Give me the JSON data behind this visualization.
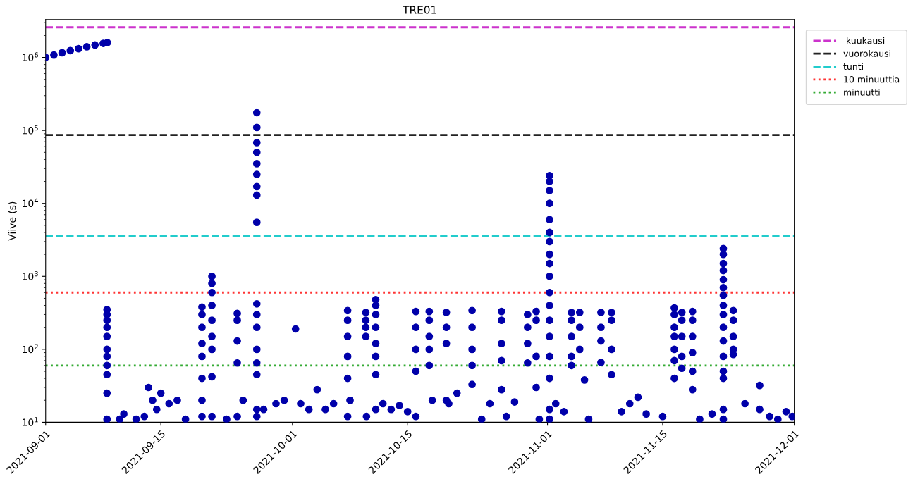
{
  "chart_data": {
    "type": "scatter",
    "title": "TRE01",
    "ylabel": "Viive (s)",
    "log": "y",
    "grid": false,
    "legend": "top right",
    "marker": "circle",
    "xlim": [
      "2021-09-01",
      "2021-12-01"
    ],
    "xticks": [
      {
        "value": "2021-09-01",
        "label": "2021-09-01"
      },
      {
        "value": "2021-09-15",
        "label": "2021-09-15"
      },
      {
        "value": "2021-10-01",
        "label": "2021-10-01"
      },
      {
        "value": "2021-10-15",
        "label": "2021-10-15"
      },
      {
        "value": "2021-11-01",
        "label": "2021-11-01"
      },
      {
        "value": "2021-11-15",
        "label": "2021-11-15"
      },
      {
        "value": "2021-12-01",
        "label": "2021-12-01"
      }
    ],
    "ylim": [
      10,
      3300000
    ],
    "yticks": [
      {
        "value": 10,
        "label": "10$^{1}$"
      },
      {
        "value": 100,
        "label": "10$^{2}$"
      },
      {
        "value": 1000,
        "label": "10$^{3}$"
      },
      {
        "value": 10000,
        "label": "10$^{4}$"
      },
      {
        "value": 100000,
        "label": "10$^{5}$"
      },
      {
        "value": 1000000,
        "label": "10$^{6}$"
      }
    ],
    "ref_lines": [
      {
        "axis": "y",
        "value": 2592000,
        "label": " kuukausi",
        "color": "#cc33cc",
        "line_style": "dashed"
      },
      {
        "axis": "y",
        "value": 86400,
        "label": "vuorokausi",
        "color": "#222222",
        "line_style": "dashed"
      },
      {
        "axis": "y",
        "value": 3600,
        "label": "tunti",
        "color": "#22cccc",
        "line_style": "dashed"
      },
      {
        "axis": "y",
        "value": 600,
        "label": "10 minuuttia",
        "color": "#ff3333",
        "line_style": "dotted"
      },
      {
        "axis": "y",
        "value": 60,
        "label": "minuutti",
        "color": "#33aa33",
        "line_style": "dotted"
      }
    ],
    "series": [
      {
        "color": "#0000aa",
        "x": [
          "2021-09-01T00:00",
          "2021-09-02T00:00",
          "2021-09-03T00:00",
          "2021-09-04T00:00",
          "2021-09-05T00:00",
          "2021-09-06T00:00",
          "2021-09-07T00:00",
          "2021-09-08T00:00",
          "2021-09-08T12:00",
          "2021-09-08T11:00",
          "2021-09-08T11:00",
          "2021-09-08T11:00",
          "2021-09-08T11:00",
          "2021-09-08T11:00",
          "2021-09-08T11:00",
          "2021-09-08T11:00",
          "2021-09-08T11:00",
          "2021-09-08T11:00",
          "2021-09-08T11:00",
          "2021-09-08T11:00",
          "2021-09-10T00:00",
          "2021-09-10T12:00",
          "2021-09-12T00:00",
          "2021-09-13T00:00",
          "2021-09-13T12:00",
          "2021-09-14T00:00",
          "2021-09-14T12:00",
          "2021-09-15T00:00",
          "2021-09-16T00:00",
          "2021-09-17T00:00",
          "2021-09-18T00:00",
          "2021-09-20T00:00",
          "2021-09-20T00:00",
          "2021-09-20T00:00",
          "2021-09-20T00:00",
          "2021-09-20T00:00",
          "2021-09-20T00:00",
          "2021-09-20T00:00",
          "2021-09-20T00:00",
          "2021-09-21T05:00",
          "2021-09-21T05:00",
          "2021-09-21T05:00",
          "2021-09-21T05:00",
          "2021-09-21T05:00",
          "2021-09-21T05:00",
          "2021-09-21T05:00",
          "2021-09-21T05:00",
          "2021-09-21T05:00",
          "2021-09-23T00:00",
          "2021-09-24T07:00",
          "2021-09-24T07:00",
          "2021-09-24T07:00",
          "2021-09-24T07:00",
          "2021-09-24T07:00",
          "2021-09-25T00:00",
          "2021-09-26T16:00",
          "2021-09-26T16:00",
          "2021-09-26T16:00",
          "2021-09-26T16:00",
          "2021-09-26T16:00",
          "2021-09-26T16:00",
          "2021-09-26T16:00",
          "2021-09-26T16:00",
          "2021-09-26T16:00",
          "2021-09-26T16:00",
          "2021-09-26T16:00",
          "2021-09-26T16:00",
          "2021-09-26T16:00",
          "2021-09-26T16:00",
          "2021-09-26T16:00",
          "2021-09-26T16:00",
          "2021-09-26T16:00",
          "2021-09-27T12:00",
          "2021-09-29T00:00",
          "2021-09-30T00:00",
          "2021-10-01T09:00",
          "2021-10-02T00:00",
          "2021-10-03T00:00",
          "2021-10-04T00:00",
          "2021-10-05T00:00",
          "2021-10-06T00:00",
          "2021-10-07T17:00",
          "2021-10-07T17:00",
          "2021-10-07T17:00",
          "2021-10-07T17:00",
          "2021-10-07T17:00",
          "2021-10-07T17:00",
          "2021-10-08T00:00",
          "2021-10-09T22:00",
          "2021-10-09T22:00",
          "2021-10-09T22:00",
          "2021-10-09T22:00",
          "2021-10-10T00:00",
          "2021-10-11T03:00",
          "2021-10-11T03:00",
          "2021-10-11T03:00",
          "2021-10-11T03:00",
          "2021-10-11T03:00",
          "2021-10-11T03:00",
          "2021-10-11T03:00",
          "2021-10-11T03:00",
          "2021-10-12T00:00",
          "2021-10-13T00:00",
          "2021-10-14T00:00",
          "2021-10-15T00:00",
          "2021-10-16T00:00",
          "2021-10-16T00:00",
          "2021-10-16T00:00",
          "2021-10-16T00:00",
          "2021-10-16T00:00",
          "2021-10-17T15:00",
          "2021-10-17T15:00",
          "2021-10-17T15:00",
          "2021-10-17T15:00",
          "2021-10-17T15:00",
          "2021-10-18T00:00",
          "2021-10-19T17:00",
          "2021-10-19T17:00",
          "2021-10-19T17:00",
          "2021-10-19T17:00",
          "2021-10-20T00:00",
          "2021-10-21T00:00",
          "2021-10-22T20:00",
          "2021-10-22T20:00",
          "2021-10-22T20:00",
          "2021-10-22T20:00",
          "2021-10-22T20:00",
          "2021-10-24T00:00",
          "2021-10-25T00:00",
          "2021-10-26T10:00",
          "2021-10-26T10:00",
          "2021-10-26T10:00",
          "2021-10-26T10:00",
          "2021-10-26T10:00",
          "2021-10-27T00:00",
          "2021-10-28T00:00",
          "2021-10-29T14:00",
          "2021-10-29T14:00",
          "2021-10-29T14:00",
          "2021-10-29T14:00",
          "2021-10-30T15:00",
          "2021-10-30T15:00",
          "2021-10-30T15:00",
          "2021-10-30T15:00",
          "2021-10-31T00:00",
          "2021-11-01T06:00",
          "2021-11-01T06:00",
          "2021-11-01T06:00",
          "2021-11-01T06:00",
          "2021-11-01T06:00",
          "2021-11-01T06:00",
          "2021-11-01T06:00",
          "2021-11-01T06:00",
          "2021-11-01T06:00",
          "2021-11-01T06:00",
          "2021-11-01T06:00",
          "2021-11-01T06:00",
          "2021-11-01T06:00",
          "2021-11-01T06:00",
          "2021-11-01T06:00",
          "2021-11-01T06:00",
          "2021-11-01T06:00",
          "2021-11-01T06:00",
          "2021-11-02T00:00",
          "2021-11-03T00:00",
          "2021-11-03T22:00",
          "2021-11-03T22:00",
          "2021-11-03T22:00",
          "2021-11-03T22:00",
          "2021-11-03T22:00",
          "2021-11-04T22:00",
          "2021-11-04T22:00",
          "2021-11-04T22:00",
          "2021-11-05T12:00",
          "2021-11-06T00:00",
          "2021-11-07T12:00",
          "2021-11-07T12:00",
          "2021-11-07T12:00",
          "2021-11-07T12:00",
          "2021-11-08T19:00",
          "2021-11-08T19:00",
          "2021-11-08T19:00",
          "2021-11-08T19:00",
          "2021-11-10T00:00",
          "2021-11-11T00:00",
          "2021-11-12T00:00",
          "2021-11-13T00:00",
          "2021-11-15T00:00",
          "2021-11-16T10:00",
          "2021-11-16T10:00",
          "2021-11-16T10:00",
          "2021-11-16T10:00",
          "2021-11-16T10:00",
          "2021-11-16T10:00",
          "2021-11-16T10:00",
          "2021-11-17T08:00",
          "2021-11-17T08:00",
          "2021-11-17T08:00",
          "2021-11-17T08:00",
          "2021-11-17T08:00",
          "2021-11-18T15:00",
          "2021-11-18T15:00",
          "2021-11-18T15:00",
          "2021-11-18T15:00",
          "2021-11-18T15:00",
          "2021-11-18T15:00",
          "2021-11-19T12:00",
          "2021-11-21T00:00",
          "2021-11-22T09:00",
          "2021-11-22T09:00",
          "2021-11-22T09:00",
          "2021-11-22T09:00",
          "2021-11-22T09:00",
          "2021-11-22T09:00",
          "2021-11-22T09:00",
          "2021-11-22T09:00",
          "2021-11-22T09:00",
          "2021-11-22T09:00",
          "2021-11-22T09:00",
          "2021-11-22T09:00",
          "2021-11-22T09:00",
          "2021-11-22T09:00",
          "2021-11-22T09:00",
          "2021-11-22T09:00",
          "2021-11-23T14:00",
          "2021-11-23T14:00",
          "2021-11-23T14:00",
          "2021-11-23T14:00",
          "2021-11-23T14:00",
          "2021-11-25T00:00",
          "2021-11-26T19:00",
          "2021-11-26T19:00",
          "2021-11-28T00:00",
          "2021-11-29T00:00",
          "2021-11-30T00:00",
          "2021-11-30T18:00"
        ],
        "values": [
          1000000,
          1080000,
          1160000,
          1240000,
          1320000,
          1400000,
          1480000,
          1560000,
          1600000,
          350,
          300,
          250,
          200,
          150,
          100,
          80,
          60,
          45,
          25,
          11,
          11,
          13,
          11,
          12,
          30,
          20,
          15,
          25,
          18,
          20,
          11,
          380,
          300,
          200,
          120,
          80,
          40,
          20,
          12,
          1000,
          800,
          600,
          400,
          250,
          150,
          100,
          42,
          12,
          11,
          310,
          250,
          130,
          65,
          12,
          20,
          175000,
          110000,
          68000,
          50000,
          35000,
          25000,
          17000,
          13000,
          5500,
          420,
          300,
          200,
          100,
          65,
          45,
          15,
          12,
          15,
          18,
          20,
          190,
          18,
          15,
          28,
          15,
          18,
          340,
          250,
          150,
          80,
          40,
          12,
          20,
          320,
          250,
          200,
          150,
          12,
          480,
          400,
          300,
          200,
          120,
          80,
          45,
          15,
          18,
          15,
          17,
          14,
          330,
          200,
          100,
          50,
          12,
          330,
          250,
          150,
          100,
          60,
          20,
          320,
          200,
          120,
          20,
          18,
          25,
          340,
          200,
          100,
          60,
          33,
          11,
          18,
          330,
          250,
          120,
          70,
          28,
          12,
          19,
          300,
          200,
          120,
          65,
          330,
          250,
          80,
          30,
          11,
          24000,
          20000,
          15000,
          10000,
          6000,
          4000,
          3000,
          2000,
          1500,
          1000,
          600,
          400,
          250,
          150,
          80,
          40,
          15,
          11,
          18,
          14,
          320,
          250,
          150,
          80,
          60,
          320,
          200,
          100,
          38,
          11,
          320,
          200,
          130,
          66,
          320,
          250,
          100,
          45,
          14,
          18,
          22,
          13,
          12,
          370,
          300,
          200,
          150,
          100,
          70,
          40,
          320,
          250,
          150,
          80,
          55,
          330,
          250,
          150,
          90,
          50,
          28,
          11,
          13,
          2400,
          2000,
          1500,
          1200,
          900,
          700,
          550,
          400,
          300,
          200,
          130,
          80,
          50,
          40,
          15,
          11,
          340,
          250,
          150,
          100,
          85,
          18,
          32,
          15,
          12,
          11,
          14,
          12
        ]
      }
    ]
  }
}
